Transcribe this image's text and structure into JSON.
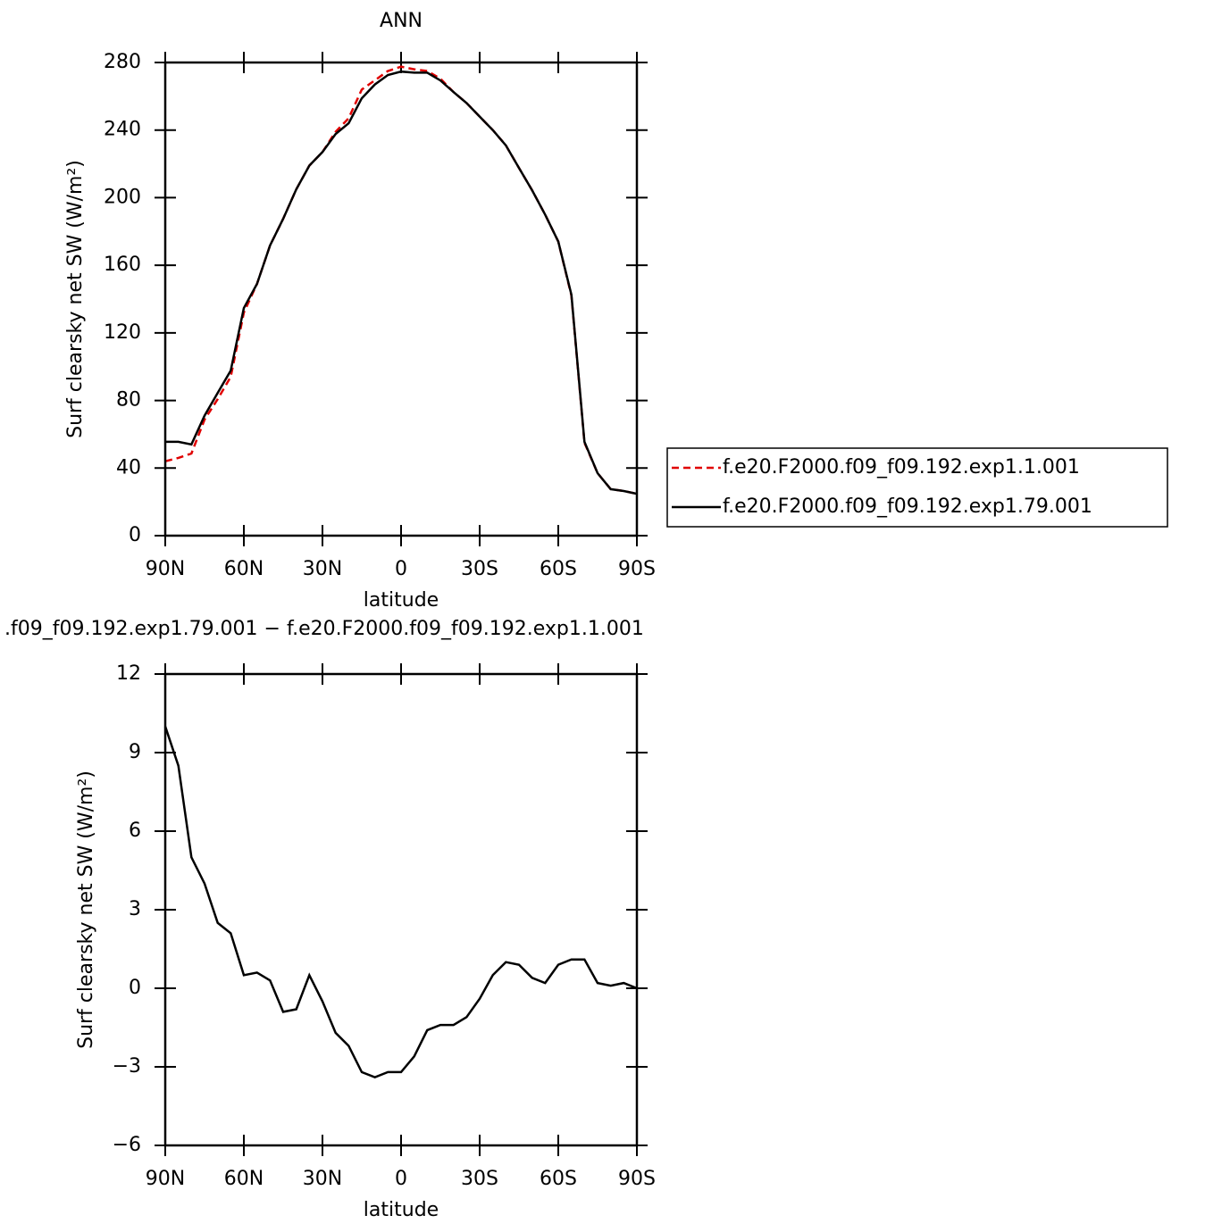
{
  "chart_data": [
    {
      "type": "line",
      "title": "ANN",
      "x_label": "latitude",
      "y_label": "Surf clearsky net SW (W/m²)",
      "x": [
        90,
        85,
        80,
        75,
        70,
        65,
        60,
        55,
        50,
        45,
        40,
        35,
        30,
        25,
        20,
        15,
        10,
        5,
        0,
        -5,
        -10,
        -15,
        -20,
        -25,
        -30,
        -35,
        -40,
        -45,
        -50,
        -55,
        -60,
        -65,
        -70,
        -75,
        -80,
        -85,
        -90
      ],
      "series": [
        {
          "name": "f.e20.F2000.f09_f09.192.exp1.1.001",
          "color": "#e00000",
          "dash": true,
          "values": [
            44,
            46,
            48.6,
            68.7,
            80.8,
            94,
            132,
            149,
            171.7,
            187.5,
            205,
            219,
            227,
            239,
            247,
            264,
            269.5,
            275,
            277.5,
            276,
            275,
            270.5,
            262.5,
            256,
            248,
            240,
            231,
            217.6,
            204.4,
            190,
            174,
            142,
            55,
            37,
            27.5,
            26.4,
            24.8
          ]
        },
        {
          "name": "f.e20.F2000.f09_f09.192.exp1.79.001",
          "color": "#000000",
          "dash": false,
          "values": [
            55.5,
            55.5,
            54,
            71,
            84.5,
            97.7,
            134.7,
            149,
            171.7,
            187.5,
            205,
            219,
            227,
            237.7,
            244,
            258.8,
            267,
            272.6,
            274.6,
            274,
            274,
            269.4,
            262.5,
            256,
            248,
            240,
            231,
            217.6,
            204.4,
            190,
            174,
            142.6,
            55.5,
            37,
            27.5,
            26.4,
            24.8
          ]
        }
      ],
      "xlim": [
        90,
        -90
      ],
      "xticks": [
        {
          "value": 90,
          "label": "90N"
        },
        {
          "value": 60,
          "label": "60N"
        },
        {
          "value": 30,
          "label": "30N"
        },
        0,
        {
          "value": -30,
          "label": "30S"
        },
        {
          "value": -60,
          "label": "60S"
        },
        {
          "value": -90,
          "label": "90S"
        }
      ],
      "ylim": [
        0,
        280
      ],
      "yticks": [
        0,
        40,
        80,
        120,
        160,
        200,
        240,
        280
      ]
    },
    {
      "type": "line",
      "title": ".f09_f09.192.exp1.79.001 − f.e20.F2000.f09_f09.192.exp1.1.001",
      "x_label": "latitude",
      "y_label": "Surf clearsky net SW (W/m²)",
      "x": [
        90,
        85,
        80,
        75,
        70,
        65,
        60,
        55,
        50,
        45,
        40,
        35,
        30,
        25,
        20,
        15,
        10,
        5,
        0,
        -5,
        -10,
        -15,
        -20,
        -25,
        -30,
        -35,
        -40,
        -45,
        -50,
        -55,
        -60,
        -65,
        -70,
        -75,
        -80,
        -85,
        -90
      ],
      "series": [
        {
          "color": "#000000",
          "dash": false,
          "values": [
            10.0,
            8.5,
            5.0,
            4.0,
            2.5,
            2.1,
            0.5,
            0.6,
            0.3,
            -0.9,
            -0.8,
            0.5,
            -0.5,
            -1.7,
            -2.2,
            -3.2,
            -3.4,
            -3.2,
            -3.2,
            -2.6,
            -1.6,
            -1.4,
            -1.4,
            -1.1,
            -0.4,
            0.5,
            1.0,
            0.9,
            0.4,
            0.2,
            0.9,
            1.1,
            1.1,
            0.2,
            0.1,
            0.2,
            0.0
          ]
        }
      ],
      "xlim": [
        90,
        -90
      ],
      "xticks": [
        {
          "value": 90,
          "label": "90N"
        },
        {
          "value": 60,
          "label": "60N"
        },
        {
          "value": 30,
          "label": "30N"
        },
        0,
        {
          "value": -30,
          "label": "30S"
        },
        {
          "value": -60,
          "label": "60S"
        },
        {
          "value": -90,
          "label": "90S"
        }
      ],
      "ylim": [
        -6,
        12
      ],
      "yticks": [
        {
          "value": -6,
          "label": "−6"
        },
        {
          "value": -3,
          "label": "−3"
        },
        0,
        3,
        6,
        9,
        12
      ]
    }
  ]
}
